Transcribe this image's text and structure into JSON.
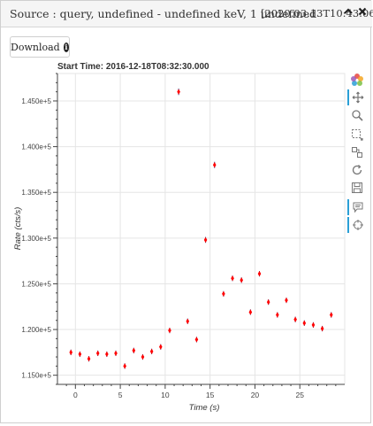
{
  "header": {
    "title": "Source : query, undefined - undefined keV, 1 undefined",
    "timestamp": "[2020.03.13T10:43:06]",
    "collapse_icon": "chevron-up-icon",
    "close_icon": "close-icon"
  },
  "download_button": {
    "label": "Download",
    "icon": "info-circle-icon"
  },
  "toolbar": {
    "tools": [
      "bokeh-logo-icon",
      "pan-icon",
      "box-zoom-icon",
      "wheel-zoom-icon",
      "lasso-select-icon",
      "reset-icon",
      "save-icon",
      "hover-icon",
      "crosshair-icon"
    ]
  },
  "chart_data": {
    "type": "scatter",
    "title": "Start Time: 2016-12-18T08:32:30.000",
    "xlabel": "Time  (s)",
    "ylabel": "Rate  (cts/s)",
    "xlim": [
      -2,
      30
    ],
    "ylim": [
      114000,
      148000
    ],
    "x_ticks": [
      0,
      5,
      10,
      15,
      20,
      25
    ],
    "y_ticks": [
      115000,
      120000,
      125000,
      130000,
      135000,
      140000,
      145000
    ],
    "y_tick_labels": [
      "1.150e+5",
      "1.200e+5",
      "1.250e+5",
      "1.300e+5",
      "1.350e+5",
      "1.400e+5",
      "1.450e+5"
    ],
    "grid": true,
    "marker_color": "#ff0000",
    "error_bar_color": "#1f3b8c",
    "series": [
      {
        "x": [
          -0.5,
          0.5,
          1.5,
          2.5,
          3.5,
          4.5,
          5.5,
          6.5,
          7.5,
          8.5,
          9.5,
          10.5,
          11.5,
          12.5,
          13.5,
          14.5,
          15.5,
          16.5,
          17.5,
          18.5,
          19.5,
          20.5,
          21.5,
          22.5,
          23.5,
          24.5,
          25.5,
          26.5,
          27.5,
          28.5
        ],
        "y": [
          117500,
          117300,
          116800,
          117400,
          117300,
          117400,
          116000,
          117700,
          117000,
          117600,
          118100,
          119900,
          146000,
          120900,
          118900,
          129800,
          138000,
          123900,
          125600,
          125400,
          121900,
          126100,
          123000,
          121600,
          123200,
          121100,
          120700,
          120500,
          120100,
          121600
        ],
        "err": [
          300,
          300,
          300,
          300,
          300,
          300,
          300,
          300,
          300,
          300,
          300,
          300,
          350,
          300,
          300,
          320,
          340,
          300,
          300,
          300,
          300,
          300,
          300,
          300,
          300,
          300,
          300,
          300,
          300,
          300
        ]
      }
    ]
  }
}
